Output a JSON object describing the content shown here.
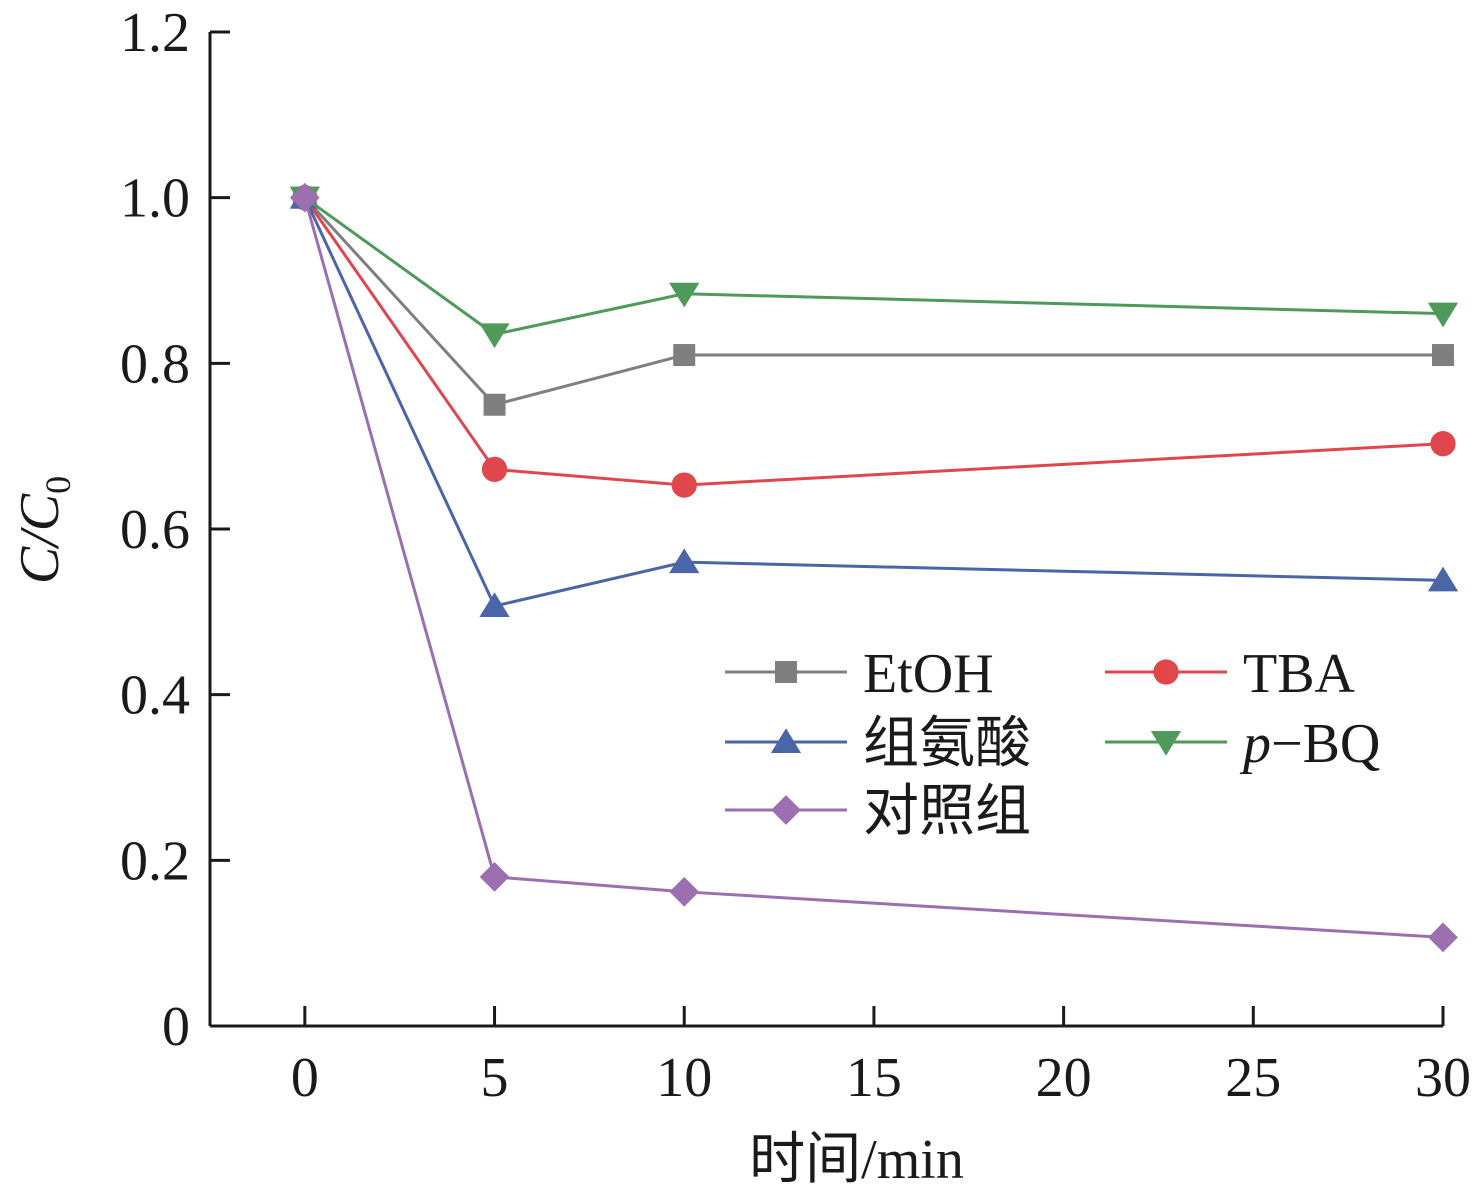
{
  "chart_data": {
    "type": "line",
    "x": [
      0,
      5,
      10,
      30
    ],
    "xlabel": "时间/min",
    "ylabel": {
      "base": "C/C",
      "subscript": "0"
    },
    "xlim": [
      -2.5,
      30
    ],
    "ylim": [
      0,
      1.2
    ],
    "xticks": [
      0,
      5,
      10,
      15,
      20,
      25,
      30
    ],
    "xtick_labels": [
      "0",
      "5",
      "10",
      "15",
      "20",
      "25",
      "30"
    ],
    "yticks": [
      0,
      0.2,
      0.4,
      0.6,
      0.8,
      1.0,
      1.2
    ],
    "ytick_labels": [
      "0",
      "0.2",
      "0.4",
      "0.6",
      "0.8",
      "1.0",
      "1.2"
    ],
    "grid": false,
    "legend_position": "center-right",
    "series": [
      {
        "name": "EtOH",
        "marker": "square",
        "color": "#7f7f7f",
        "values": [
          1.0,
          0.75,
          0.81,
          0.81
        ]
      },
      {
        "name": "TBA",
        "marker": "circle",
        "color": "#e0474c",
        "values": [
          1.0,
          0.672,
          0.653,
          0.703
        ]
      },
      {
        "name": "组氨酸",
        "marker": "triangle-up",
        "color": "#4a65a8",
        "values": [
          1.0,
          0.507,
          0.56,
          0.538
        ]
      },
      {
        "name": "p−BQ",
        "name_parts": {
          "italic": "p",
          "rest": "−BQ"
        },
        "marker": "triangle-down",
        "color": "#4f9a5a",
        "values": [
          1.0,
          0.835,
          0.884,
          0.86
        ]
      },
      {
        "name": "对照组",
        "marker": "diamond",
        "color": "#9b6fb0",
        "values": [
          1.0,
          0.18,
          0.162,
          0.107
        ]
      }
    ]
  }
}
